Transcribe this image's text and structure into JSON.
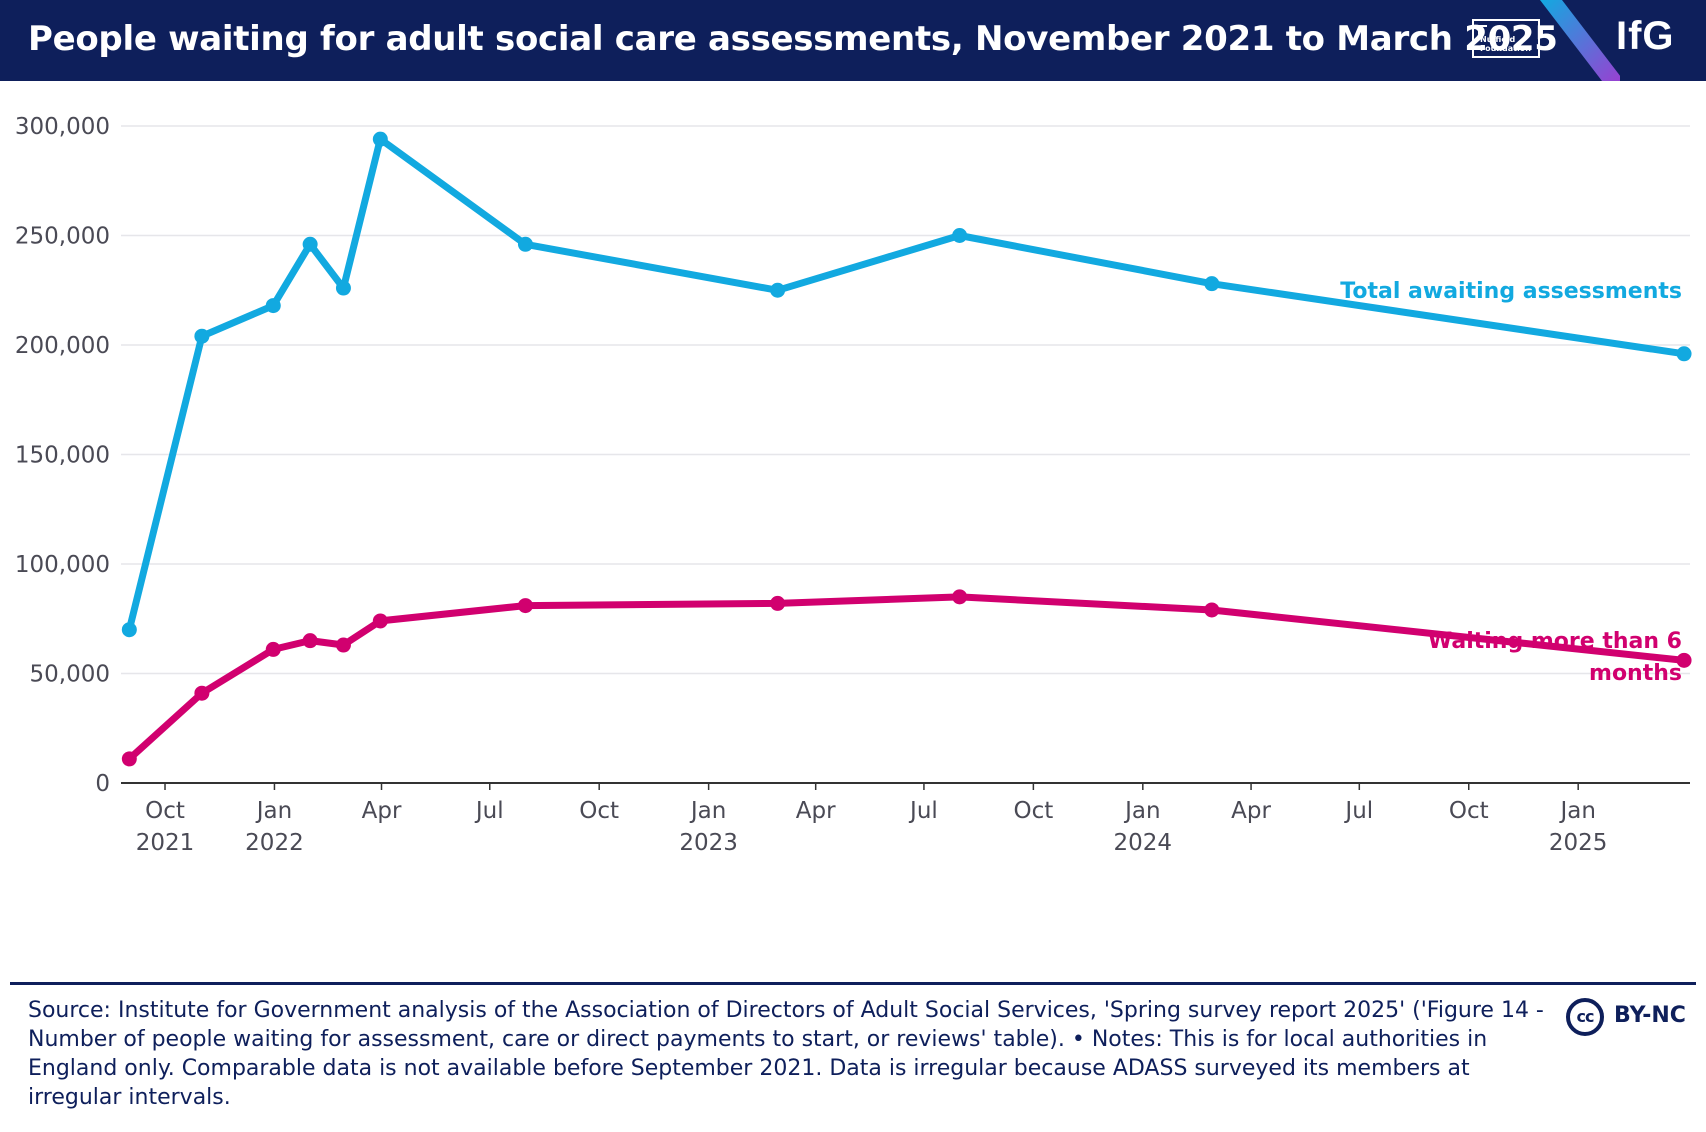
{
  "header": {
    "title": "People waiting for adult social care assessments, November 2021 to March 2025",
    "partner_logo_text": "Nuffield Foundation",
    "brand_logo_text": "IfG"
  },
  "colors": {
    "header_bg": "#0e1f5b",
    "total_series": "#12a9e0",
    "over6_series": "#d1006f",
    "grid": "#e6e6ea",
    "axis": "#333333"
  },
  "chart_data": {
    "type": "line",
    "title": "People waiting for adult social care assessments, November 2021 to March 2025",
    "xlabel": "",
    "ylabel": "",
    "ylim": [
      0,
      300000
    ],
    "yticks": [
      0,
      50000,
      100000,
      150000,
      200000,
      250000,
      300000
    ],
    "ytick_labels": [
      "0",
      "50,000",
      "100,000",
      "150,000",
      "200,000",
      "250,000",
      "300,000"
    ],
    "xlim": [
      "2021-08-25",
      "2025-04-05"
    ],
    "xticks": [
      {
        "date": "2021-10-01",
        "label": "Oct",
        "year": "2021"
      },
      {
        "date": "2022-01-01",
        "label": "Jan",
        "year": "2022"
      },
      {
        "date": "2022-04-01",
        "label": "Apr",
        "year": ""
      },
      {
        "date": "2022-07-01",
        "label": "Jul",
        "year": ""
      },
      {
        "date": "2022-10-01",
        "label": "Oct",
        "year": ""
      },
      {
        "date": "2023-01-01",
        "label": "Jan",
        "year": "2023"
      },
      {
        "date": "2023-04-01",
        "label": "Apr",
        "year": ""
      },
      {
        "date": "2023-07-01",
        "label": "Jul",
        "year": ""
      },
      {
        "date": "2023-10-01",
        "label": "Oct",
        "year": ""
      },
      {
        "date": "2024-01-01",
        "label": "Jan",
        "year": "2024"
      },
      {
        "date": "2024-04-01",
        "label": "Apr",
        "year": ""
      },
      {
        "date": "2024-07-01",
        "label": "Jul",
        "year": ""
      },
      {
        "date": "2024-10-01",
        "label": "Oct",
        "year": ""
      },
      {
        "date": "2025-01-01",
        "label": "Jan",
        "year": "2025"
      }
    ],
    "series": [
      {
        "name": "Total awaiting assessments",
        "label": "Total awaiting assessments",
        "color": "#12a9e0",
        "points": [
          {
            "date": "2021-09-01",
            "value": 70000
          },
          {
            "date": "2021-11-01",
            "value": 204000
          },
          {
            "date": "2021-12-31",
            "value": 218000
          },
          {
            "date": "2022-01-31",
            "value": 246000
          },
          {
            "date": "2022-02-28",
            "value": 226000
          },
          {
            "date": "2022-03-31",
            "value": 294000
          },
          {
            "date": "2022-07-31",
            "value": 246000
          },
          {
            "date": "2023-02-28",
            "value": 225000
          },
          {
            "date": "2023-07-31",
            "value": 250000
          },
          {
            "date": "2024-02-28",
            "value": 228000
          },
          {
            "date": "2025-03-31",
            "value": 196000
          }
        ]
      },
      {
        "name": "Waiting more than 6 months",
        "label": "Waiting more than 6 months",
        "label_lines": [
          "Waiting more than 6",
          "months"
        ],
        "color": "#d1006f",
        "points": [
          {
            "date": "2021-09-01",
            "value": 11000
          },
          {
            "date": "2021-11-01",
            "value": 41000
          },
          {
            "date": "2021-12-31",
            "value": 61000
          },
          {
            "date": "2022-01-31",
            "value": 65000
          },
          {
            "date": "2022-02-28",
            "value": 63000
          },
          {
            "date": "2022-03-31",
            "value": 74000
          },
          {
            "date": "2022-07-31",
            "value": 81000
          },
          {
            "date": "2023-02-28",
            "value": 82000
          },
          {
            "date": "2023-07-31",
            "value": 85000
          },
          {
            "date": "2024-02-28",
            "value": 79000
          },
          {
            "date": "2025-03-31",
            "value": 56000
          }
        ]
      }
    ]
  },
  "footer": {
    "source_text": "Source: Institute for Government analysis of the Association of Directors of Adult Social Services, 'Spring survey report 2025' ('Figure 14 - Number of people waiting for assessment, care or direct payments to start, or reviews' table). • Notes: This is for local authorities in England only. Comparable data is not available before September 2021. Data is irregular because ADASS surveyed its members at irregular intervals.",
    "license_badge": "cc",
    "license_text": "BY-NC"
  }
}
